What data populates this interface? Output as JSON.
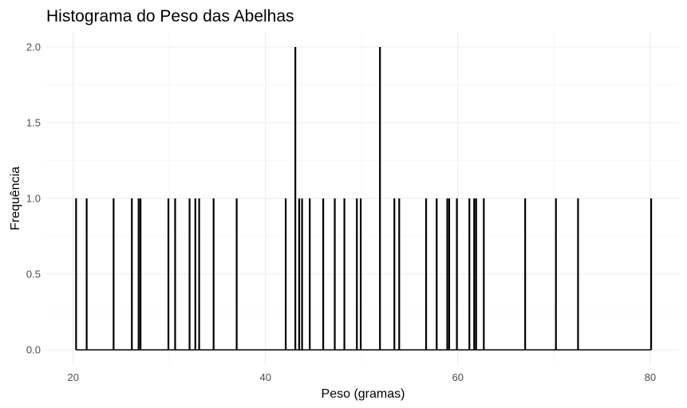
{
  "chart_data": {
    "type": "bar",
    "title": "Histograma do Peso das Abelhas",
    "xlabel": "Peso (gramas)",
    "ylabel": "Frequência",
    "xlim": [
      17.2,
      83
    ],
    "ylim": [
      -0.1,
      2.1
    ],
    "x_ticks": [
      20,
      40,
      60,
      80
    ],
    "x_tick_labels": [
      "20",
      "40",
      "60",
      "80"
    ],
    "y_ticks": [
      0,
      0.5,
      1,
      1.5,
      2
    ],
    "y_tick_labels": [
      "0.0",
      "0.5",
      "1.0",
      "1.5",
      "2.0"
    ],
    "grid": true,
    "legend": "none",
    "bar_color": "#000000",
    "baseline_range": [
      20.3,
      80.1
    ],
    "bars": [
      {
        "x": 20.3,
        "count": 1
      },
      {
        "x": 21.4,
        "count": 1
      },
      {
        "x": 24.2,
        "count": 1
      },
      {
        "x": 26.1,
        "count": 1
      },
      {
        "x": 26.8,
        "count": 1
      },
      {
        "x": 27.0,
        "count": 1
      },
      {
        "x": 29.9,
        "count": 1
      },
      {
        "x": 30.6,
        "count": 1
      },
      {
        "x": 32.1,
        "count": 1
      },
      {
        "x": 32.7,
        "count": 1
      },
      {
        "x": 33.1,
        "count": 1
      },
      {
        "x": 34.6,
        "count": 1
      },
      {
        "x": 37.0,
        "count": 1
      },
      {
        "x": 42.1,
        "count": 1
      },
      {
        "x": 43.1,
        "count": 2
      },
      {
        "x": 43.5,
        "count": 1
      },
      {
        "x": 43.8,
        "count": 1
      },
      {
        "x": 44.6,
        "count": 1
      },
      {
        "x": 46.0,
        "count": 1
      },
      {
        "x": 47.2,
        "count": 1
      },
      {
        "x": 48.2,
        "count": 1
      },
      {
        "x": 49.5,
        "count": 1
      },
      {
        "x": 49.9,
        "count": 1
      },
      {
        "x": 51.9,
        "count": 2
      },
      {
        "x": 53.4,
        "count": 1
      },
      {
        "x": 53.9,
        "count": 1
      },
      {
        "x": 56.7,
        "count": 1
      },
      {
        "x": 57.8,
        "count": 1
      },
      {
        "x": 58.9,
        "count": 1
      },
      {
        "x": 59.1,
        "count": 1
      },
      {
        "x": 59.9,
        "count": 1
      },
      {
        "x": 61.2,
        "count": 1
      },
      {
        "x": 61.7,
        "count": 1
      },
      {
        "x": 61.9,
        "count": 1
      },
      {
        "x": 62.7,
        "count": 1
      },
      {
        "x": 67.0,
        "count": 1
      },
      {
        "x": 70.2,
        "count": 1
      },
      {
        "x": 72.5,
        "count": 1
      },
      {
        "x": 80.1,
        "count": 1
      }
    ]
  }
}
